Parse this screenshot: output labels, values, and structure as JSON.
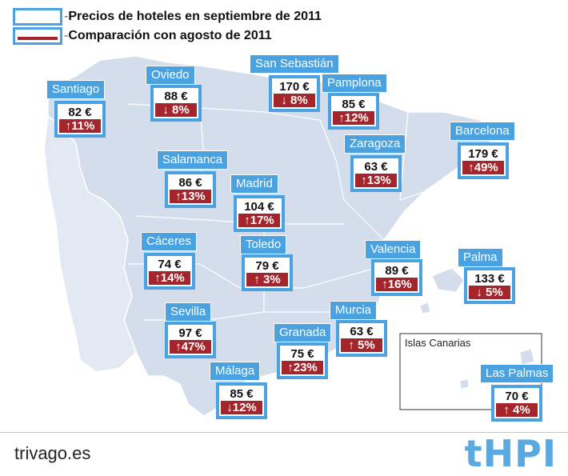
{
  "legend": {
    "price_label": "Precios de hoteles en septiembre de 2011",
    "compare_label": "Comparación con agosto de 2011"
  },
  "cities": [
    {
      "name": "Santiago",
      "price": "82 €",
      "change": "↑11%"
    },
    {
      "name": "Oviedo",
      "price": "88 €",
      "change": "↓ 8%"
    },
    {
      "name": "San Sebastián",
      "price": "170 €",
      "change": "↓ 8%"
    },
    {
      "name": "Pamplona",
      "price": "85 €",
      "change": "↑12%"
    },
    {
      "name": "Barcelona",
      "price": "179 €",
      "change": "↑49%"
    },
    {
      "name": "Zaragoza",
      "price": "63 €",
      "change": "↑13%"
    },
    {
      "name": "Salamanca",
      "price": "86 €",
      "change": "↑13%"
    },
    {
      "name": "Madrid",
      "price": "104 €",
      "change": "↑17%"
    },
    {
      "name": "Cáceres",
      "price": "74 €",
      "change": "↑14%"
    },
    {
      "name": "Toledo",
      "price": "79 €",
      "change": "↑ 3%"
    },
    {
      "name": "Valencia",
      "price": "89 €",
      "change": "↑16%"
    },
    {
      "name": "Palma",
      "price": "133 €",
      "change": "↓ 5%"
    },
    {
      "name": "Sevilla",
      "price": "97 €",
      "change": "↑47%"
    },
    {
      "name": "Granada",
      "price": "75 €",
      "change": "↑23%"
    },
    {
      "name": "Murcia",
      "price": "63 €",
      "change": "↑ 5%"
    },
    {
      "name": "Málaga",
      "price": "85 €",
      "change": "↓12%"
    },
    {
      "name": "Las Palmas",
      "price": "70 €",
      "change": "↑ 4%"
    }
  ],
  "canarias_label": "Islas Canarias",
  "footer": {
    "source": "trivago.es",
    "logo": "tHPI"
  },
  "colors": {
    "accent": "#4aa3e0",
    "change_bg": "#a4262c",
    "land": "#d3ddeb"
  }
}
